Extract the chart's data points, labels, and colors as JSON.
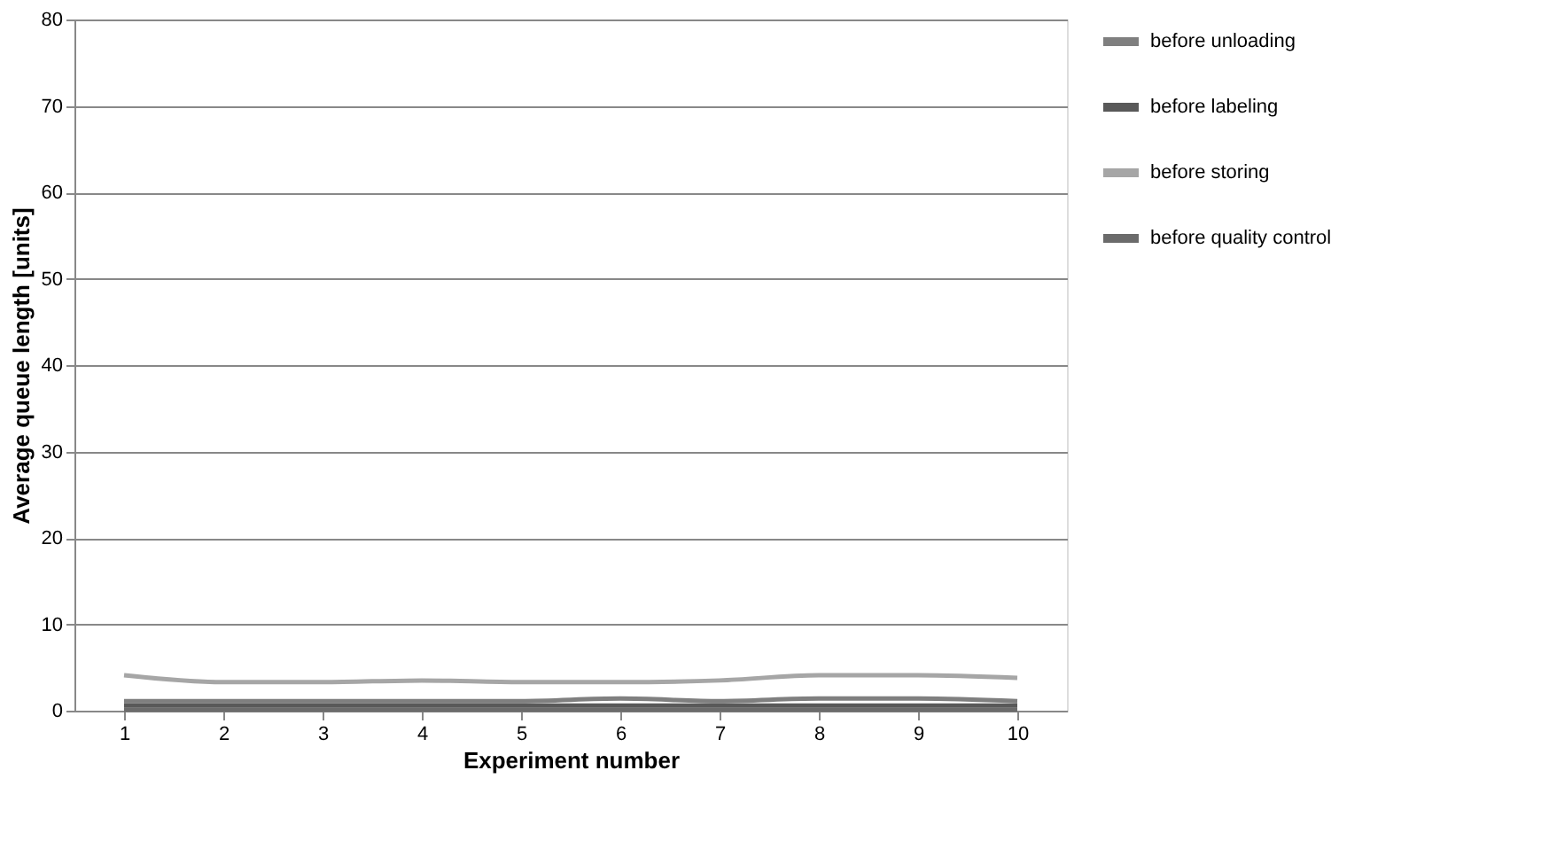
{
  "chart_data": {
    "type": "line",
    "xlabel": "Experiment number",
    "ylabel": "Average queue length [units]",
    "categories": [
      "1",
      "2",
      "3",
      "4",
      "5",
      "6",
      "7",
      "8",
      "9",
      "10"
    ],
    "series": [
      {
        "name": "before unloading",
        "color": "#7f7f7f",
        "values": [
          1.1,
          1.1,
          1.1,
          1.1,
          1.1,
          1.4,
          1.1,
          1.4,
          1.4,
          1.1
        ]
      },
      {
        "name": "before labeling",
        "color": "#595959",
        "values": [
          0.6,
          0.6,
          0.6,
          0.6,
          0.6,
          0.6,
          0.6,
          0.6,
          0.6,
          0.6
        ]
      },
      {
        "name": "before storing",
        "color": "#a6a6a6",
        "values": [
          4.1,
          3.3,
          3.3,
          3.5,
          3.3,
          3.3,
          3.5,
          4.1,
          4.1,
          3.8
        ]
      },
      {
        "name": "before quality control",
        "color": "#6b6b6b",
        "values": [
          0.1,
          0.1,
          0.1,
          0.1,
          0.1,
          0.1,
          0.1,
          0.1,
          0.1,
          0.1
        ]
      }
    ],
    "ylim": [
      0,
      80
    ],
    "yticks": [
      0,
      10,
      20,
      30,
      40,
      50,
      60,
      70,
      80
    ],
    "grid": "y",
    "legend": "right",
    "marker": "none",
    "line_style": "solid"
  }
}
